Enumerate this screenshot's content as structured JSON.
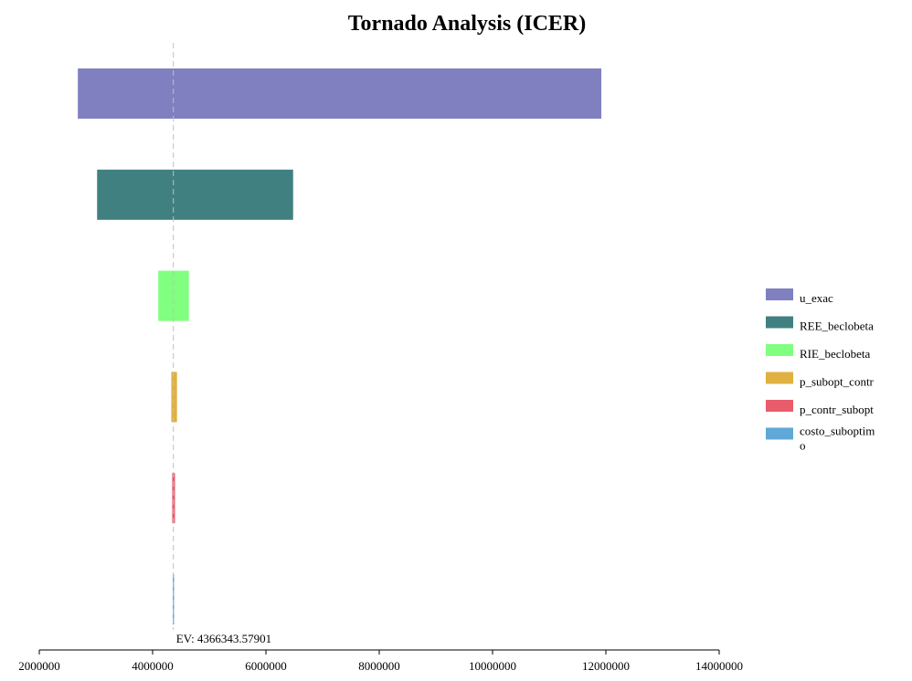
{
  "chart_data": {
    "type": "bar",
    "orientation": "horizontal",
    "title": "Tornado Analysis (ICER)",
    "xlabel": "",
    "ylabel": "",
    "xlim": [
      2000000,
      14000000
    ],
    "x_ticks": [
      2000000,
      4000000,
      6000000,
      8000000,
      10000000,
      12000000,
      14000000
    ],
    "x_tick_labels": [
      "2000000",
      "4000000",
      "6000000",
      "8000000",
      "10000000",
      "12000000",
      "14000000"
    ],
    "expected_value": 4366343.57901,
    "expected_value_label": "EV: 4366343.57901",
    "grid": false,
    "legend_position": "right",
    "bars": [
      {
        "name": "u_exac",
        "low": 2680000,
        "high": 11920000,
        "color": "#8080c0"
      },
      {
        "name": "REE_beclobeta",
        "low": 3020000,
        "high": 6480000,
        "color": "#408080"
      },
      {
        "name": "RIE_beclobeta",
        "low": 4100000,
        "high": 4640000,
        "color": "#80ff80"
      },
      {
        "name": "p_subopt_contr",
        "low": 4330000,
        "high": 4430000,
        "color": "#e0b040"
      },
      {
        "name": "p_contr_subopt",
        "low": 4345000,
        "high": 4395000,
        "color": "#e85c6c"
      },
      {
        "name": "costo_suboptimo",
        "low": 4355000,
        "high": 4375000,
        "color": "#60a8d8"
      }
    ],
    "legend_entries": [
      {
        "lines": [
          "u_exac"
        ],
        "color": "#8080c0"
      },
      {
        "lines": [
          "REE_beclobeta"
        ],
        "color": "#408080"
      },
      {
        "lines": [
          "RIE_beclobeta"
        ],
        "color": "#80ff80"
      },
      {
        "lines": [
          "p_subopt_contr"
        ],
        "color": "#e0b040"
      },
      {
        "lines": [
          "p_contr_subopt"
        ],
        "color": "#e85c6c"
      },
      {
        "lines": [
          "costo_suboptim",
          "o"
        ],
        "color": "#60a8d8"
      }
    ]
  }
}
